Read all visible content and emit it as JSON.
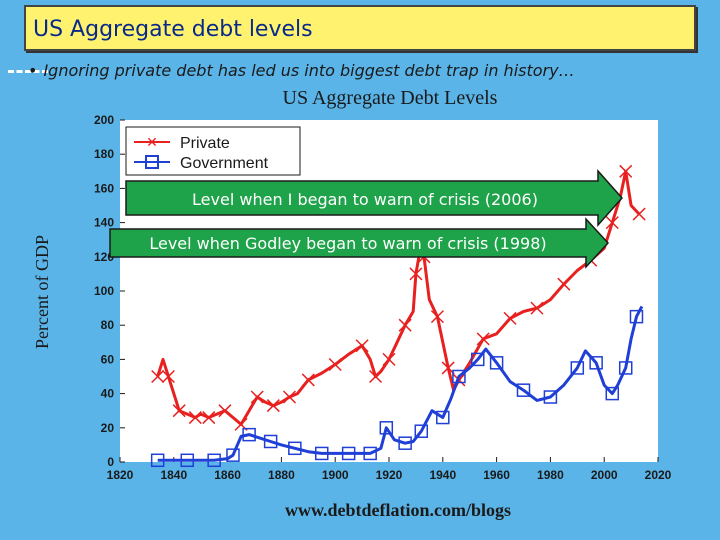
{
  "slide": {
    "title": "US Aggregate debt levels",
    "bullet": "Ignoring private debt has led us into biggest debt trap in history…"
  },
  "colors": {
    "background": "#5ab4e8",
    "title_box": "#fef26f",
    "private": "#e82020",
    "government": "#1f3fd6",
    "arrow_fill": "#1fa34a"
  },
  "chart_data": {
    "type": "line",
    "title": "US Aggregate Debt Levels",
    "ylabel": "Percent of GDP",
    "xlabel": "",
    "xlim": [
      1820,
      2020
    ],
    "ylim": [
      0,
      200
    ],
    "x_ticks": [
      1820,
      1840,
      1860,
      1880,
      1900,
      1920,
      1940,
      1960,
      1980,
      2000,
      2020
    ],
    "y_ticks": [
      0,
      20,
      40,
      60,
      80,
      100,
      120,
      140,
      160,
      180,
      200
    ],
    "grid": false,
    "legend_position": "top-left",
    "source": "www.debtdeflation.com/blogs",
    "series": [
      {
        "name": "Private",
        "color": "#e82020",
        "marker": "x",
        "x": [
          1834,
          1836,
          1838,
          1840,
          1842,
          1845,
          1848,
          1850,
          1853,
          1856,
          1859,
          1862,
          1865,
          1868,
          1871,
          1874,
          1877,
          1880,
          1883,
          1886,
          1890,
          1895,
          1900,
          1905,
          1910,
          1913,
          1915,
          1917,
          1920,
          1923,
          1926,
          1929,
          1930,
          1932,
          1933,
          1935,
          1938,
          1940,
          1942,
          1944,
          1946,
          1950,
          1955,
          1960,
          1965,
          1970,
          1975,
          1980,
          1985,
          1990,
          1995,
          2000,
          2003,
          2006,
          2008,
          2010,
          2013
        ],
        "y": [
          50,
          60,
          50,
          40,
          30,
          28,
          26,
          28,
          26,
          28,
          30,
          26,
          22,
          30,
          38,
          35,
          33,
          35,
          38,
          40,
          48,
          52,
          57,
          63,
          68,
          60,
          50,
          53,
          60,
          70,
          80,
          88,
          110,
          128,
          120,
          95,
          85,
          70,
          55,
          42,
          48,
          58,
          72,
          75,
          84,
          88,
          90,
          95,
          104,
          112,
          118,
          125,
          140,
          155,
          170,
          150,
          145
        ]
      },
      {
        "name": "Government",
        "color": "#1f3fd6",
        "marker": "square",
        "x": [
          1834,
          1840,
          1845,
          1850,
          1855,
          1860,
          1862,
          1865,
          1868,
          1872,
          1876,
          1880,
          1885,
          1890,
          1895,
          1900,
          1905,
          1910,
          1913,
          1917,
          1919,
          1922,
          1926,
          1929,
          1932,
          1936,
          1940,
          1943,
          1946,
          1950,
          1953,
          1956,
          1960,
          1965,
          1970,
          1975,
          1980,
          1985,
          1990,
          1993,
          1997,
          2000,
          2003,
          2005,
          2008,
          2010,
          2012,
          2014
        ],
        "y": [
          1,
          1,
          1,
          1,
          1,
          2,
          4,
          15,
          16,
          14,
          12,
          10,
          8,
          6,
          5,
          5,
          5,
          5,
          5,
          8,
          20,
          13,
          11,
          12,
          18,
          30,
          26,
          37,
          50,
          55,
          60,
          66,
          58,
          47,
          42,
          36,
          38,
          45,
          55,
          65,
          58,
          45,
          40,
          45,
          55,
          72,
          85,
          91
        ]
      }
    ],
    "annotations": [
      "Level when I began to warn of crisis (2006)",
      "Level when Godley began to warn of crisis (1998)"
    ]
  }
}
